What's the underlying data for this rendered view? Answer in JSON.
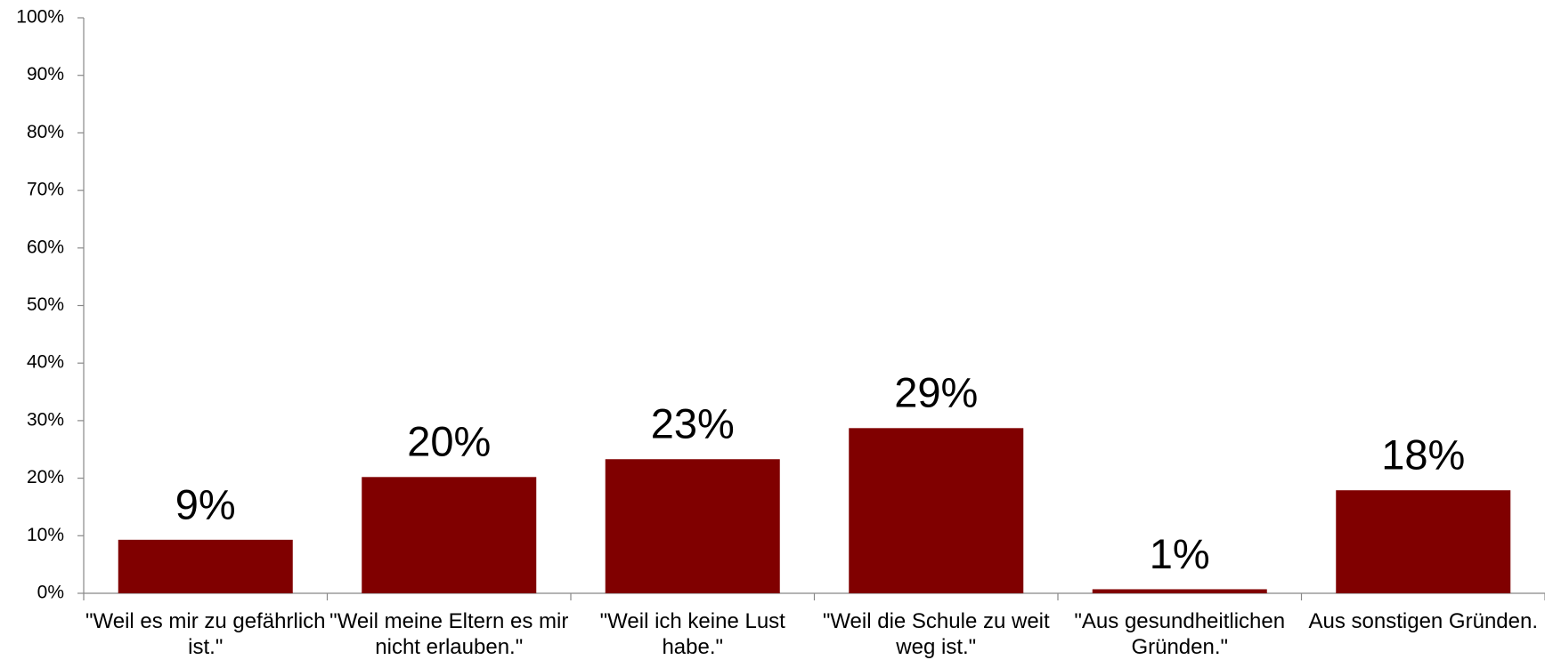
{
  "chart_data": {
    "type": "bar",
    "categories": [
      "\"Weil es mir zu gefährlich ist.\"",
      "\"Weil meine Eltern es mir nicht erlauben.\"",
      "\"Weil ich keine Lust habe.\"",
      "\"Weil die Schule zu weit weg ist.\"",
      "\"Aus gesundheitlichen Gründen.\"",
      "Aus sonstigen Gründen."
    ],
    "values": [
      9.3,
      20.2,
      23.3,
      28.7,
      0.7,
      17.9
    ],
    "value_labels": [
      "9%",
      "20%",
      "23%",
      "29%",
      "1%",
      "18%"
    ],
    "color": "#800000",
    "ylim": [
      0,
      100
    ],
    "yticks": [
      {
        "value": 0,
        "label": "0%"
      },
      {
        "value": 10,
        "label": "10%"
      },
      {
        "value": 20,
        "label": "20%"
      },
      {
        "value": 30,
        "label": "30%"
      },
      {
        "value": 40,
        "label": "40%"
      },
      {
        "value": 50,
        "label": "50%"
      },
      {
        "value": 60,
        "label": "60%"
      },
      {
        "value": 70,
        "label": "70%"
      },
      {
        "value": 80,
        "label": "80%"
      },
      {
        "value": 90,
        "label": "90%"
      },
      {
        "value": 100,
        "label": "100%"
      }
    ],
    "grid": false
  }
}
